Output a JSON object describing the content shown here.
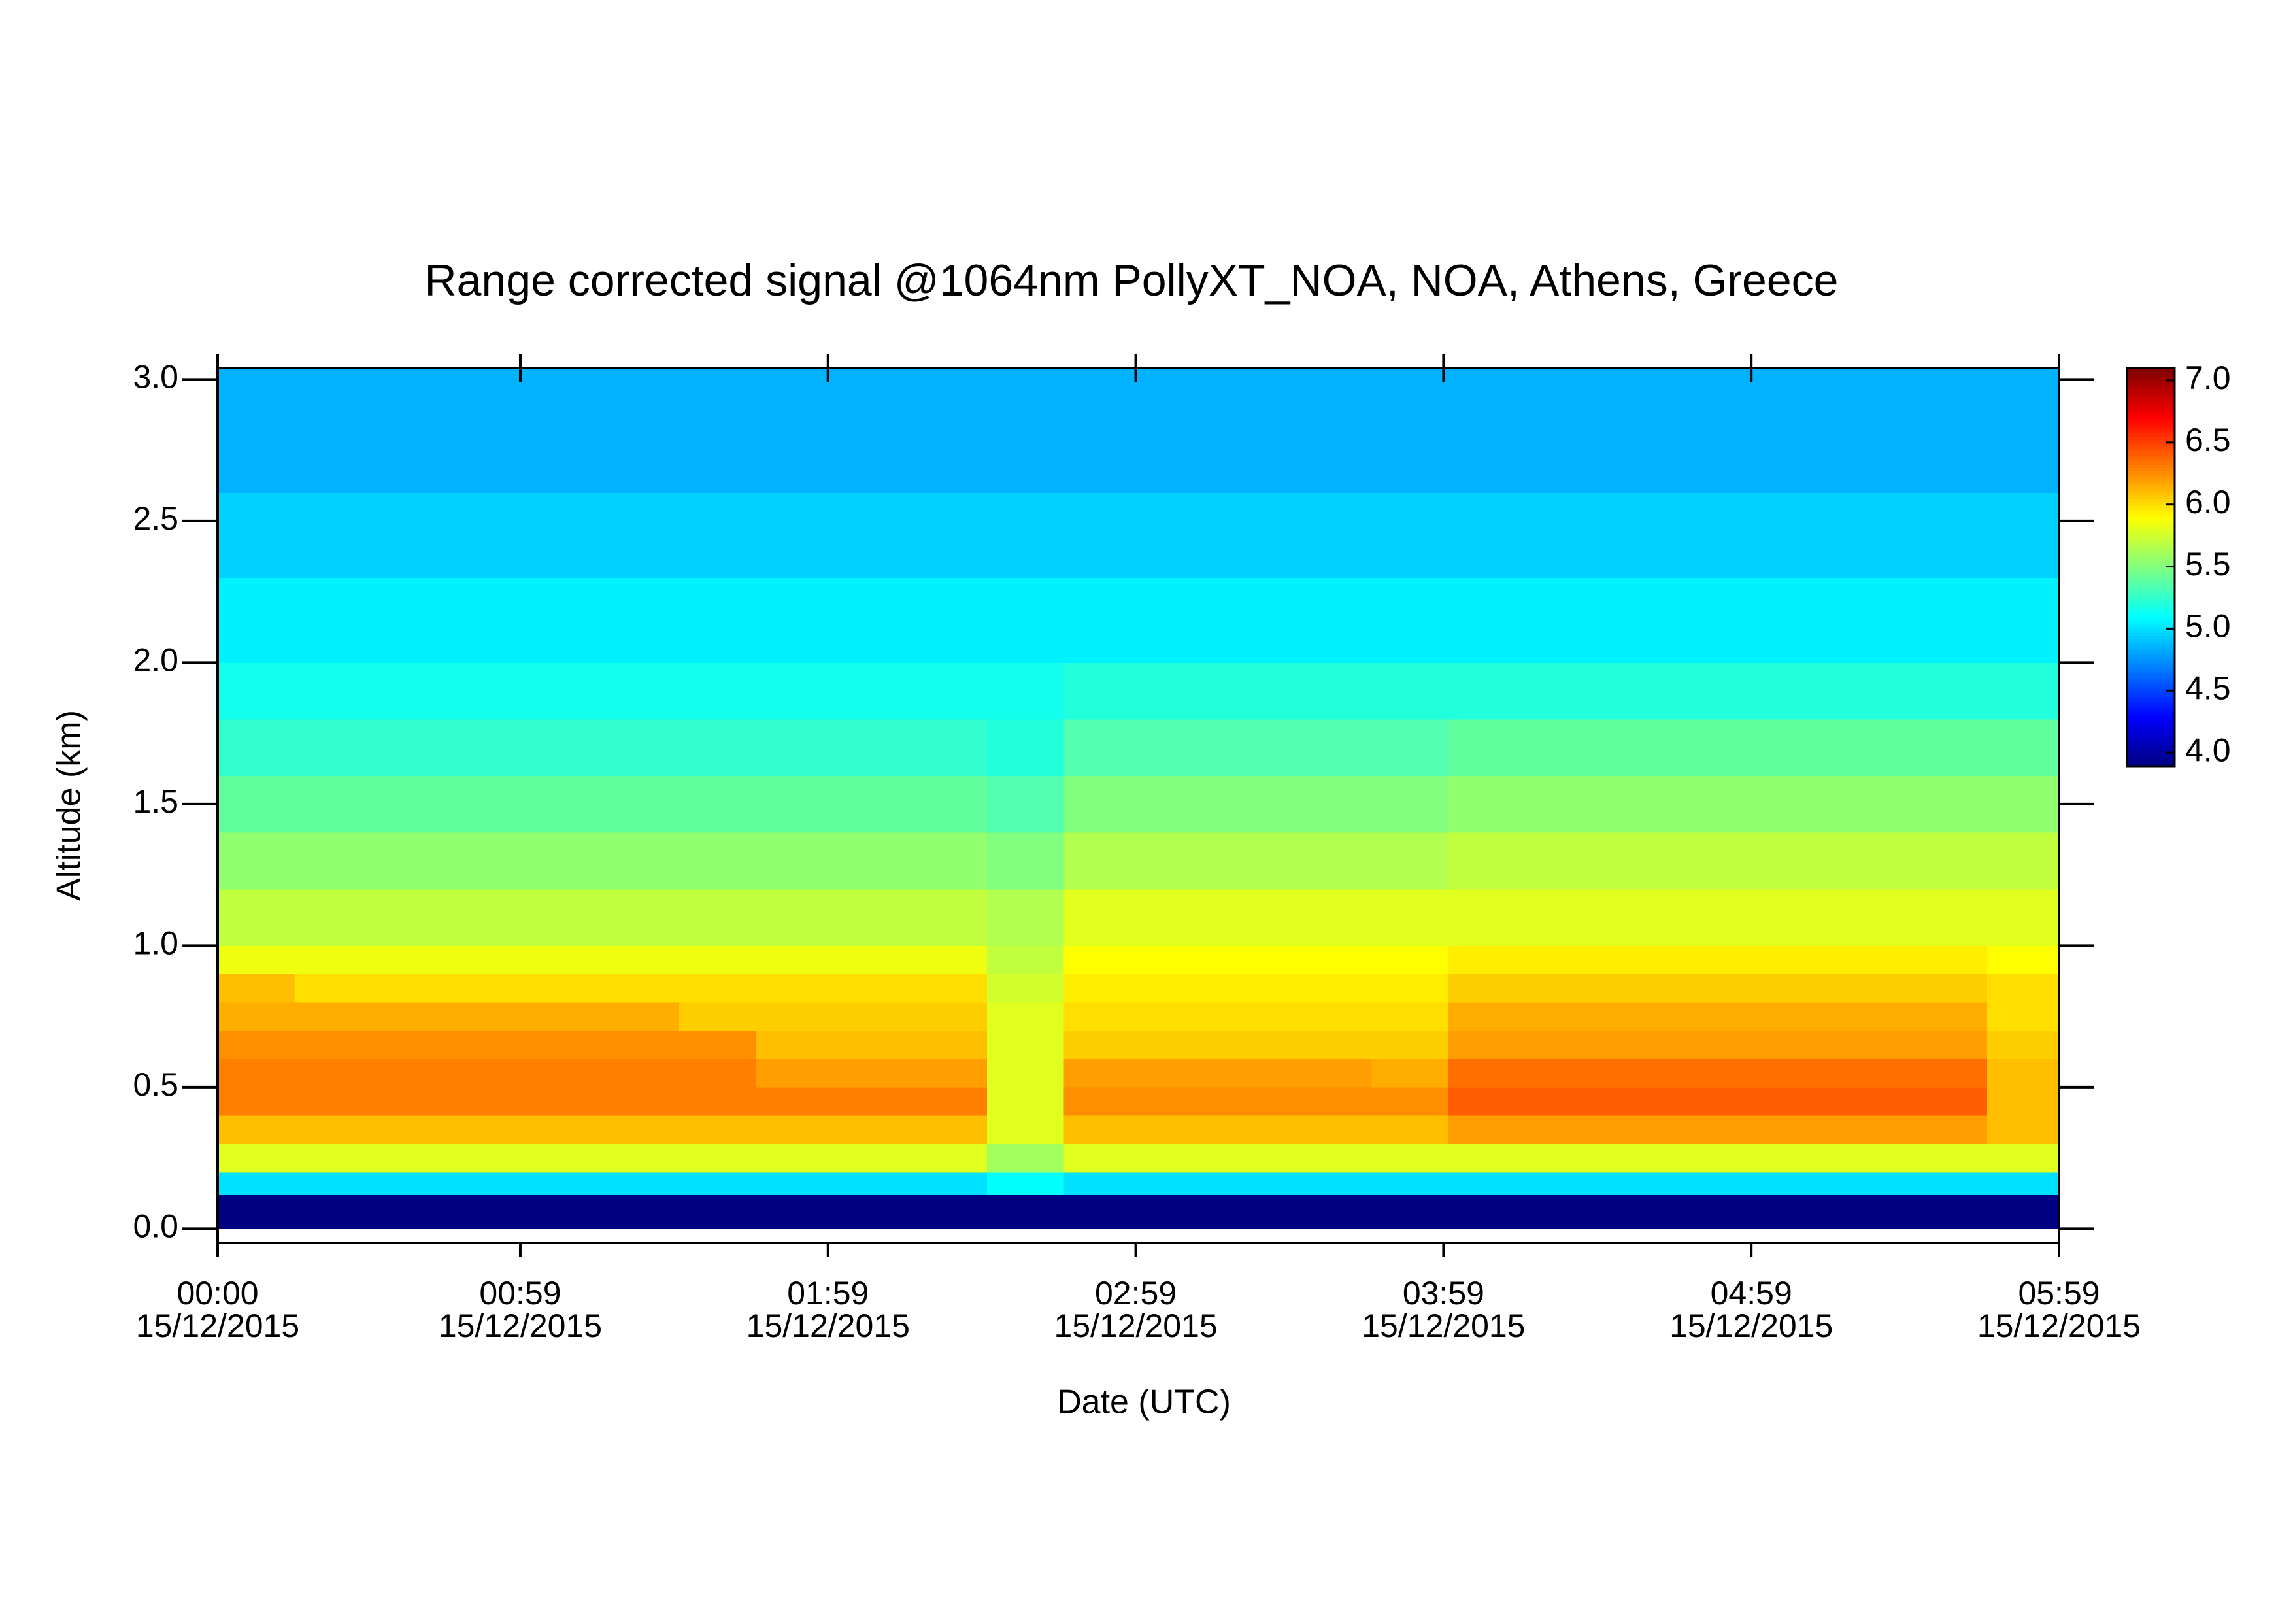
{
  "chart_data": {
    "type": "heatmap",
    "title": "Range corrected signal @1064nm  PollyXT_NOA, NOA, Athens, Greece",
    "xlabel": "Date (UTC)",
    "ylabel": "Altitude (km)",
    "xlim": [
      0,
      359
    ],
    "xticks": [
      {
        "value": 0,
        "label": [
          "00:00",
          "15/12/2015"
        ]
      },
      {
        "value": 59,
        "label": [
          "00:59",
          "15/12/2015"
        ]
      },
      {
        "value": 119,
        "label": [
          "01:59",
          "15/12/2015"
        ]
      },
      {
        "value": 179,
        "label": [
          "02:59",
          "15/12/2015"
        ]
      },
      {
        "value": 239,
        "label": [
          "03:59",
          "15/12/2015"
        ]
      },
      {
        "value": 299,
        "label": [
          "04:59",
          "15/12/2015"
        ]
      },
      {
        "value": 359,
        "label": [
          "05:59",
          "15/12/2015"
        ]
      }
    ],
    "ylim": [
      -0.05,
      3.04
    ],
    "yticks": [
      {
        "value": 0,
        "label": "0.0"
      },
      0.5,
      {
        "value": 1,
        "label": "1.0"
      },
      1.5,
      {
        "value": 2,
        "label": "2.0"
      },
      2.5,
      {
        "value": 3,
        "label": "3.0"
      }
    ],
    "zlim": [
      3.89,
      7.1
    ],
    "zticks": [
      {
        "value": 4,
        "label": "4.0"
      },
      4.5,
      {
        "value": 5,
        "label": "5.0"
      },
      5.5,
      {
        "value": 6,
        "label": "6.0"
      },
      6.5,
      {
        "value": 7,
        "label": "7.0"
      }
    ],
    "colormap": "jet",
    "x": [
      0,
      15,
      30,
      45,
      60,
      75,
      90,
      105,
      120,
      135,
      150,
      165,
      180,
      195,
      210,
      225,
      240,
      255,
      270,
      285,
      300,
      315,
      330,
      345
    ],
    "y": [
      0,
      0.12,
      0.2,
      0.3,
      0.4,
      0.5,
      0.6,
      0.7,
      0.8,
      0.9,
      1.0,
      1.2,
      1.4,
      1.6,
      1.8,
      2.0,
      2.3,
      2.6
    ],
    "z": [
      [
        3.9,
        3.9,
        3.9,
        3.9,
        3.9,
        3.9,
        3.9,
        3.9,
        3.9,
        3.9,
        3.9,
        3.9,
        3.9,
        3.9,
        3.9,
        3.9,
        3.9,
        3.9,
        3.9,
        3.9,
        3.9,
        3.9,
        3.9,
        3.9
      ],
      [
        5.0,
        5.0,
        5.0,
        5.0,
        5.0,
        5.0,
        5.0,
        5.0,
        5.0,
        5.0,
        5.1,
        5.0,
        5.0,
        5.0,
        5.0,
        5.0,
        5.0,
        5.0,
        5.0,
        5.0,
        5.0,
        5.0,
        5.0,
        5.0
      ],
      [
        5.8,
        5.8,
        5.8,
        5.8,
        5.8,
        5.8,
        5.8,
        5.8,
        5.8,
        5.8,
        5.6,
        5.8,
        5.8,
        5.8,
        5.8,
        5.8,
        5.8,
        5.8,
        5.8,
        5.8,
        5.8,
        5.8,
        5.8,
        5.8
      ],
      [
        6.1,
        6.1,
        6.1,
        6.1,
        6.1,
        6.1,
        6.1,
        6.1,
        6.1,
        6.1,
        5.8,
        6.1,
        6.1,
        6.1,
        6.1,
        6.1,
        6.2,
        6.2,
        6.2,
        6.2,
        6.2,
        6.2,
        6.2,
        6.1
      ],
      [
        6.3,
        6.3,
        6.3,
        6.3,
        6.3,
        6.3,
        6.3,
        6.3,
        6.3,
        6.3,
        5.8,
        6.25,
        6.25,
        6.25,
        6.25,
        6.25,
        6.4,
        6.4,
        6.4,
        6.4,
        6.4,
        6.4,
        6.4,
        6.1
      ],
      [
        6.3,
        6.3,
        6.3,
        6.3,
        6.3,
        6.3,
        6.3,
        6.2,
        6.2,
        6.2,
        5.8,
        6.2,
        6.2,
        6.2,
        6.2,
        6.15,
        6.35,
        6.35,
        6.35,
        6.35,
        6.35,
        6.35,
        6.35,
        6.1
      ],
      [
        6.25,
        6.25,
        6.25,
        6.25,
        6.25,
        6.25,
        6.25,
        6.1,
        6.1,
        6.1,
        5.8,
        6.05,
        6.05,
        6.05,
        6.05,
        6.05,
        6.2,
        6.2,
        6.2,
        6.2,
        6.2,
        6.2,
        6.2,
        6.05
      ],
      [
        6.15,
        6.15,
        6.15,
        6.15,
        6.15,
        6.15,
        6.05,
        6.05,
        6.05,
        6.05,
        5.8,
        6.0,
        6.0,
        6.0,
        6.0,
        6.0,
        6.15,
        6.15,
        6.15,
        6.15,
        6.15,
        6.15,
        6.15,
        6.0
      ],
      [
        6.1,
        6.0,
        6.0,
        6.0,
        6.0,
        6.0,
        6.0,
        6.0,
        6.0,
        6.0,
        5.75,
        5.95,
        5.95,
        5.95,
        5.95,
        5.95,
        6.05,
        6.05,
        6.05,
        6.05,
        6.05,
        6.05,
        6.05,
        6.0
      ],
      [
        5.85,
        5.85,
        5.85,
        5.85,
        5.85,
        5.85,
        5.85,
        5.85,
        5.85,
        5.85,
        5.7,
        5.9,
        5.9,
        5.9,
        5.9,
        5.9,
        5.95,
        5.95,
        5.95,
        5.95,
        5.95,
        5.95,
        5.95,
        5.9
      ],
      [
        5.7,
        5.7,
        5.7,
        5.7,
        5.7,
        5.7,
        5.7,
        5.7,
        5.7,
        5.7,
        5.65,
        5.8,
        5.8,
        5.8,
        5.8,
        5.8,
        5.8,
        5.8,
        5.8,
        5.8,
        5.8,
        5.8,
        5.8,
        5.8
      ],
      [
        5.55,
        5.55,
        5.55,
        5.55,
        5.55,
        5.55,
        5.55,
        5.55,
        5.55,
        5.55,
        5.5,
        5.65,
        5.65,
        5.65,
        5.65,
        5.65,
        5.7,
        5.7,
        5.7,
        5.7,
        5.7,
        5.7,
        5.7,
        5.7
      ],
      [
        5.4,
        5.4,
        5.4,
        5.4,
        5.4,
        5.4,
        5.4,
        5.4,
        5.4,
        5.4,
        5.35,
        5.5,
        5.5,
        5.5,
        5.5,
        5.5,
        5.55,
        5.55,
        5.55,
        5.55,
        5.55,
        5.55,
        5.55,
        5.55
      ],
      [
        5.25,
        5.25,
        5.25,
        5.25,
        5.25,
        5.25,
        5.25,
        5.25,
        5.25,
        5.25,
        5.2,
        5.35,
        5.35,
        5.35,
        5.35,
        5.35,
        5.4,
        5.4,
        5.4,
        5.4,
        5.4,
        5.4,
        5.4,
        5.4
      ],
      [
        5.15,
        5.15,
        5.15,
        5.15,
        5.15,
        5.15,
        5.15,
        5.15,
        5.15,
        5.15,
        5.15,
        5.2,
        5.2,
        5.2,
        5.2,
        5.2,
        5.2,
        5.2,
        5.2,
        5.2,
        5.2,
        5.2,
        5.2,
        5.2
      ],
      [
        5.05,
        5.05,
        5.05,
        5.05,
        5.05,
        5.05,
        5.05,
        5.05,
        5.05,
        5.05,
        5.05,
        5.05,
        5.05,
        5.05,
        5.05,
        5.05,
        5.05,
        5.05,
        5.05,
        5.05,
        5.05,
        5.05,
        5.05,
        5.05
      ],
      [
        4.95,
        4.95,
        4.95,
        4.95,
        4.95,
        4.95,
        4.95,
        4.95,
        4.95,
        4.95,
        4.95,
        4.95,
        4.95,
        4.95,
        4.95,
        4.95,
        4.95,
        4.95,
        4.95,
        4.95,
        4.95,
        4.95,
        4.95,
        4.95
      ],
      [
        4.85,
        4.85,
        4.85,
        4.85,
        4.85,
        4.85,
        4.85,
        4.85,
        4.85,
        4.85,
        4.85,
        4.85,
        4.85,
        4.85,
        4.85,
        4.85,
        4.85,
        4.85,
        4.85,
        4.85,
        4.85,
        4.85,
        4.85,
        4.85
      ]
    ]
  }
}
